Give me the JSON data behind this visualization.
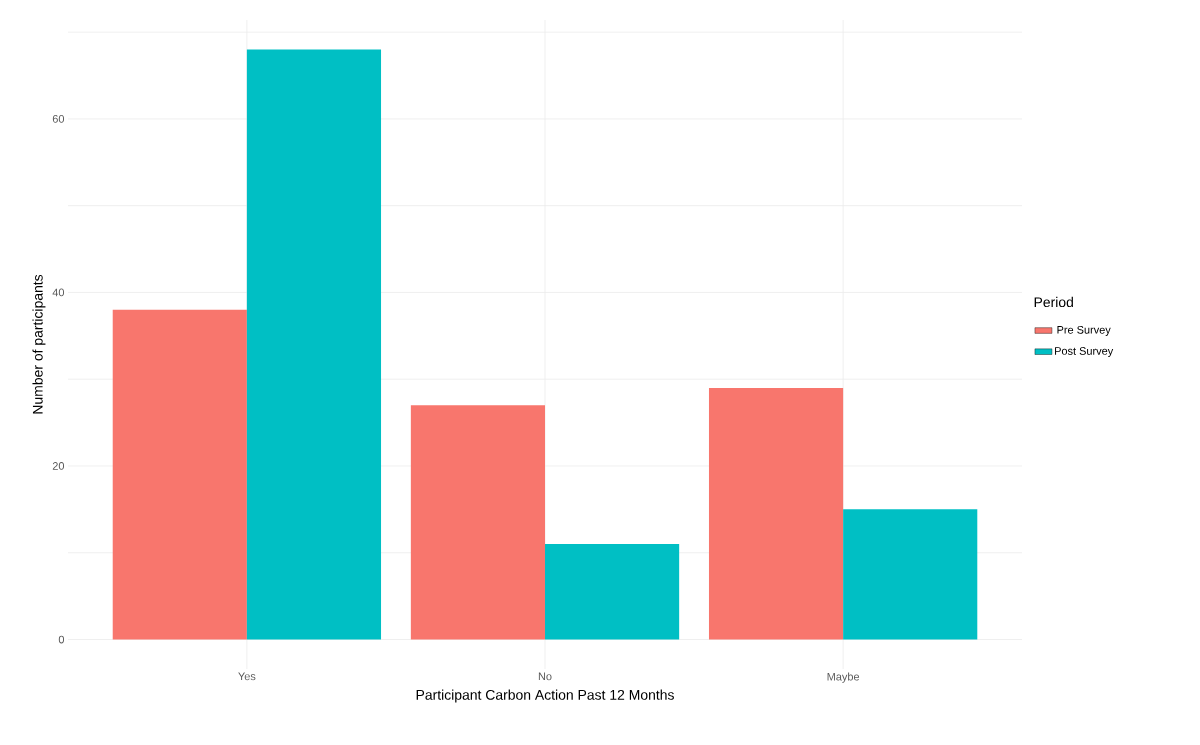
{
  "chart_data": {
    "type": "bar",
    "xlabel": "Participant Carbon Action Past 12 Months",
    "ylabel": "Number of participants",
    "legend_title": "Period",
    "categories": [
      "Yes",
      "No",
      "Maybe"
    ],
    "series": [
      {
        "name": "Pre Survey",
        "color": "#f8766d",
        "values": [
          38,
          27,
          29
        ]
      },
      {
        "name": "Post Survey",
        "color": "#00bfc4",
        "values": [
          68,
          11,
          15
        ]
      }
    ],
    "ylim": [
      -3.4,
      71.4
    ],
    "yticks": [
      0,
      {
        "value": 10,
        "label": null
      },
      20,
      {
        "value": 30,
        "label": null
      },
      40,
      {
        "value": 50,
        "label": null
      },
      60,
      {
        "value": 70,
        "label": null
      }
    ],
    "grid": true,
    "legend": "right"
  }
}
